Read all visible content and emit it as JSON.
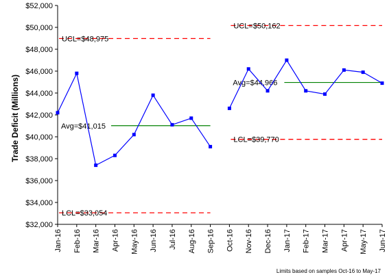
{
  "chart_data": {
    "type": "line",
    "ylabel": "Trade Deficit (Millions)",
    "xlabel": "",
    "title": "",
    "ylim": [
      32000,
      52000
    ],
    "yticks": [
      32000,
      34000,
      36000,
      38000,
      40000,
      42000,
      44000,
      46000,
      48000,
      50000,
      52000
    ],
    "ytick_labels": [
      "$32,000",
      "$34,000",
      "$36,000",
      "$38,000",
      "$40,000",
      "$42,000",
      "$44,000",
      "$46,000",
      "$48,000",
      "$50,000",
      "$52,000"
    ],
    "categories": [
      "Jan-16",
      "Feb-16",
      "Mar-16",
      "Apr-16",
      "May-16",
      "Jun-16",
      "Jul-16",
      "Aug-16",
      "Sep-16",
      "Oct-16",
      "Nov-16",
      "Dec-16",
      "Jan-17",
      "Feb-17",
      "Mar-17",
      "Apr-17",
      "May-17",
      "Jun-17"
    ],
    "series": [
      {
        "values": [
          42200,
          45800,
          37400,
          38300,
          40200,
          43800,
          41100,
          41700,
          39100,
          42600,
          46200,
          44200,
          47000,
          44200,
          43900,
          46100,
          45900,
          44900
        ],
        "segments": [
          [
            0,
            8
          ],
          [
            9,
            17
          ]
        ],
        "color": "#0000ff"
      }
    ],
    "limits": [
      {
        "from": 0,
        "to": 8,
        "ucl": 48975,
        "avg": 41015,
        "lcl": 33054,
        "ucl_label": "UCL=$48,975",
        "avg_label": "Avg=$41,015",
        "lcl_label": "LCL=$33,054"
      },
      {
        "from": 9,
        "to": 17,
        "ucl": 50162,
        "avg": 44966,
        "lcl": 39770,
        "ucl_label": "UCL=$50,162",
        "avg_label": "Avg=$44,966",
        "lcl_label": "LCL=$39,770"
      }
    ],
    "limit_colors": {
      "control": "#ff0000",
      "average": "#008000"
    },
    "grid": false,
    "annotation": "Limits based on samples Oct-16 to May-17"
  }
}
